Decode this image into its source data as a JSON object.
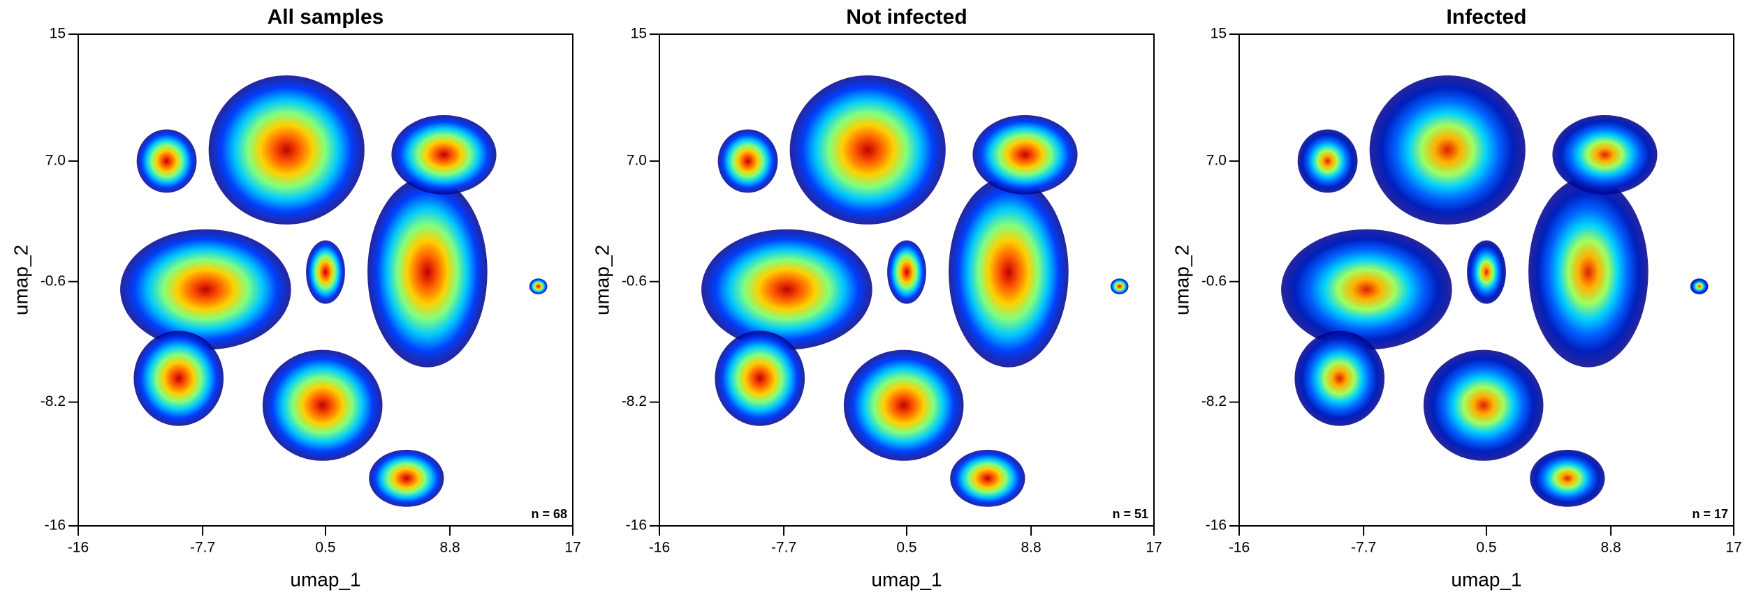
{
  "chart_data": [
    {
      "type": "density",
      "title": "All samples",
      "xlabel": "umap_1",
      "ylabel": "umap_2",
      "annotation": "n = 68",
      "xlim": [
        -16,
        17
      ],
      "ylim": [
        -16,
        15
      ],
      "xticks": [
        -16,
        -7.7,
        0.5,
        8.8,
        17
      ],
      "yticks": [
        15,
        {
          "value": 7,
          "label": "7.0"
        },
        -0.6,
        -8.2,
        -16
      ],
      "colormap": [
        "#c00000",
        "#ff5a00",
        "#ffd000",
        "#80ff80",
        "#00c8ff",
        "#0040ff",
        "#00008b"
      ],
      "clusters": [
        {
          "x": -2.1,
          "y": 7.7,
          "rx": 5.2,
          "ry": 4.7
        },
        {
          "x": -10.1,
          "y": 7.0,
          "rx": 2.0,
          "ry": 2.0
        },
        {
          "x": -7.5,
          "y": -1.1,
          "rx": 5.7,
          "ry": 3.8
        },
        {
          "x": -9.3,
          "y": -6.7,
          "rx": 3.0,
          "ry": 3.0
        },
        {
          "x": 0.5,
          "y": 0.0,
          "rx": 1.3,
          "ry": 2.0
        },
        {
          "x": 7.3,
          "y": 0.0,
          "rx": 4.0,
          "ry": 6.0
        },
        {
          "x": 8.4,
          "y": 7.4,
          "rx": 3.5,
          "ry": 2.5
        },
        {
          "x": 0.3,
          "y": -8.4,
          "rx": 4.0,
          "ry": 3.5
        },
        {
          "x": 5.9,
          "y": -13.0,
          "rx": 2.5,
          "ry": 1.8
        },
        {
          "x": 14.7,
          "y": -0.9,
          "rx": 0.6,
          "ry": 0.5
        }
      ]
    },
    {
      "type": "density",
      "title": "Not infected",
      "xlabel": "umap_1",
      "ylabel": "umap_2",
      "annotation": "n = 51",
      "xlim": [
        -16,
        17
      ],
      "ylim": [
        -16,
        15
      ],
      "xticks": [
        -16,
        -7.7,
        0.5,
        8.8,
        17
      ],
      "yticks": [
        15,
        {
          "value": 7,
          "label": "7.0"
        },
        -0.6,
        -8.2,
        -16
      ],
      "colormap": [
        "#c00000",
        "#ff5a00",
        "#ffd000",
        "#80ff80",
        "#00c8ff",
        "#0040ff",
        "#00008b"
      ],
      "clusters": [
        {
          "x": -2.1,
          "y": 7.7,
          "rx": 5.2,
          "ry": 4.7
        },
        {
          "x": -10.1,
          "y": 7.0,
          "rx": 2.0,
          "ry": 2.0
        },
        {
          "x": -7.5,
          "y": -1.1,
          "rx": 5.7,
          "ry": 3.8
        },
        {
          "x": -9.3,
          "y": -6.7,
          "rx": 3.0,
          "ry": 3.0
        },
        {
          "x": 0.5,
          "y": 0.0,
          "rx": 1.3,
          "ry": 2.0
        },
        {
          "x": 7.3,
          "y": 0.0,
          "rx": 4.0,
          "ry": 6.0
        },
        {
          "x": 8.4,
          "y": 7.4,
          "rx": 3.5,
          "ry": 2.5
        },
        {
          "x": 0.3,
          "y": -8.4,
          "rx": 4.0,
          "ry": 3.5
        },
        {
          "x": 5.9,
          "y": -13.0,
          "rx": 2.5,
          "ry": 1.8
        },
        {
          "x": 14.7,
          "y": -0.9,
          "rx": 0.6,
          "ry": 0.5
        }
      ]
    },
    {
      "type": "density",
      "title": "Infected",
      "xlabel": "umap_1",
      "ylabel": "umap_2",
      "annotation": "n = 17",
      "xlim": [
        -16,
        17
      ],
      "ylim": [
        -16,
        15
      ],
      "xticks": [
        -16,
        -7.7,
        0.5,
        8.8,
        17
      ],
      "yticks": [
        15,
        {
          "value": 7,
          "label": "7.0"
        },
        -0.6,
        -8.2,
        -16
      ],
      "colormap": [
        "#e02000",
        "#ffb000",
        "#a0ff60",
        "#00d0ff",
        "#0060ff",
        "#0020c0",
        "#00008b"
      ],
      "clusters": [
        {
          "x": -2.1,
          "y": 7.7,
          "rx": 5.2,
          "ry": 4.7
        },
        {
          "x": -10.1,
          "y": 7.0,
          "rx": 2.0,
          "ry": 2.0
        },
        {
          "x": -7.5,
          "y": -1.1,
          "rx": 5.7,
          "ry": 3.8
        },
        {
          "x": -9.3,
          "y": -6.7,
          "rx": 3.0,
          "ry": 3.0
        },
        {
          "x": 0.5,
          "y": 0.0,
          "rx": 1.3,
          "ry": 2.0
        },
        {
          "x": 7.3,
          "y": 0.0,
          "rx": 4.0,
          "ry": 6.0
        },
        {
          "x": 8.4,
          "y": 7.4,
          "rx": 3.5,
          "ry": 2.5
        },
        {
          "x": 0.3,
          "y": -8.4,
          "rx": 4.0,
          "ry": 3.5
        },
        {
          "x": 5.9,
          "y": -13.0,
          "rx": 2.5,
          "ry": 1.8
        },
        {
          "x": 14.7,
          "y": -0.9,
          "rx": 0.6,
          "ry": 0.5
        }
      ]
    }
  ]
}
